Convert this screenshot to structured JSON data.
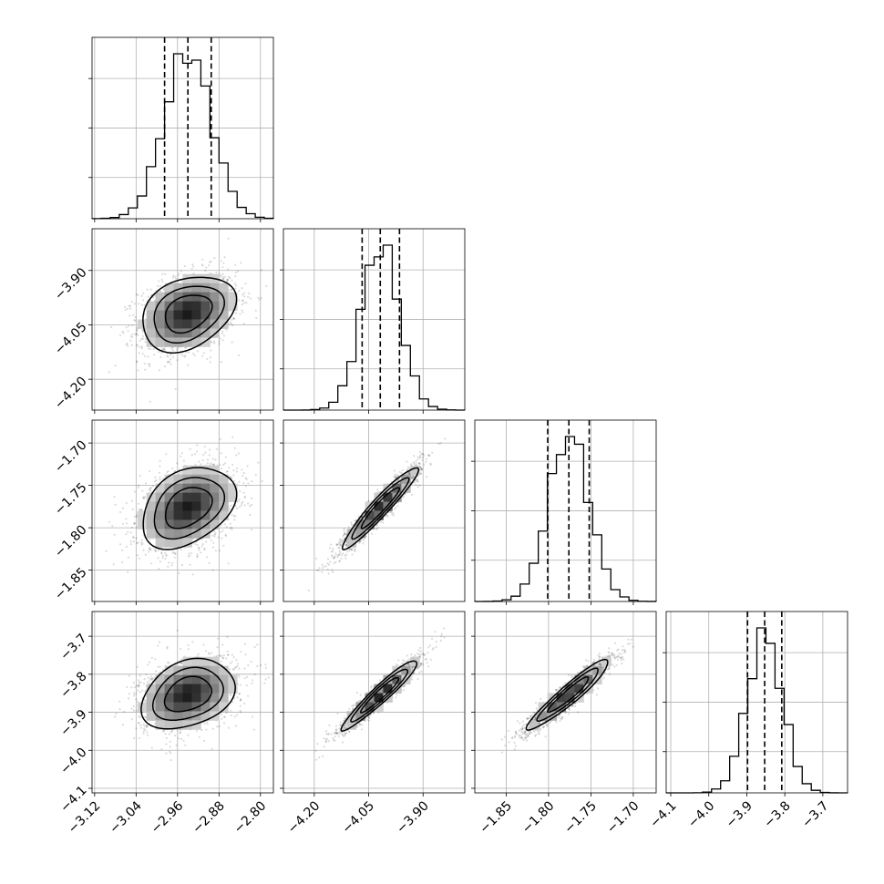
{
  "chart_data": {
    "type": "corner",
    "grid": true,
    "params": [
      {
        "ticks": [
          -3.12,
          -3.04,
          -2.96,
          -2.88,
          -2.8
        ],
        "tick_labels": [
          "−3.12",
          "−3.04",
          "−2.96",
          "−2.88",
          "−2.80"
        ],
        "range": [
          -3.125,
          -2.775
        ],
        "quantiles": [
          -2.985,
          -2.94,
          -2.895
        ],
        "mean": -2.94,
        "sigma": 0.045
      },
      {
        "ticks": [
          -4.2,
          -4.05,
          -3.9
        ],
        "tick_labels": [
          "−4.20",
          "−4.05",
          "−3.90"
        ],
        "range": [
          -4.285,
          -3.785
        ],
        "quantiles": [
          -4.068,
          -4.018,
          -3.965
        ],
        "mean": -4.018,
        "sigma": 0.052
      },
      {
        "ticks": [
          -1.85,
          -1.8,
          -1.75,
          -1.7
        ],
        "tick_labels": [
          "−1.85",
          "−1.80",
          "−1.75",
          "−1.70"
        ],
        "range": [
          -1.887,
          -1.673
        ],
        "quantiles": [
          -1.801,
          -1.776,
          -1.752
        ],
        "mean": -1.776,
        "sigma": 0.024
      },
      {
        "ticks": [
          -4.1,
          -4.0,
          -3.9,
          -3.8,
          -3.7
        ],
        "tick_labels": [
          "−4.1",
          "−4.0",
          "−3.9",
          "−3.8",
          "−3.7"
        ],
        "range": [
          -4.112,
          -3.635
        ],
        "quantiles": [
          -3.898,
          -3.853,
          -3.808
        ],
        "mean": -3.853,
        "sigma": 0.046
      }
    ],
    "correlations": {
      "1-0": 0.3,
      "2-0": 0.35,
      "2-1": 0.95,
      "3-0": 0.3,
      "3-1": 0.95,
      "3-2": 0.94
    }
  }
}
